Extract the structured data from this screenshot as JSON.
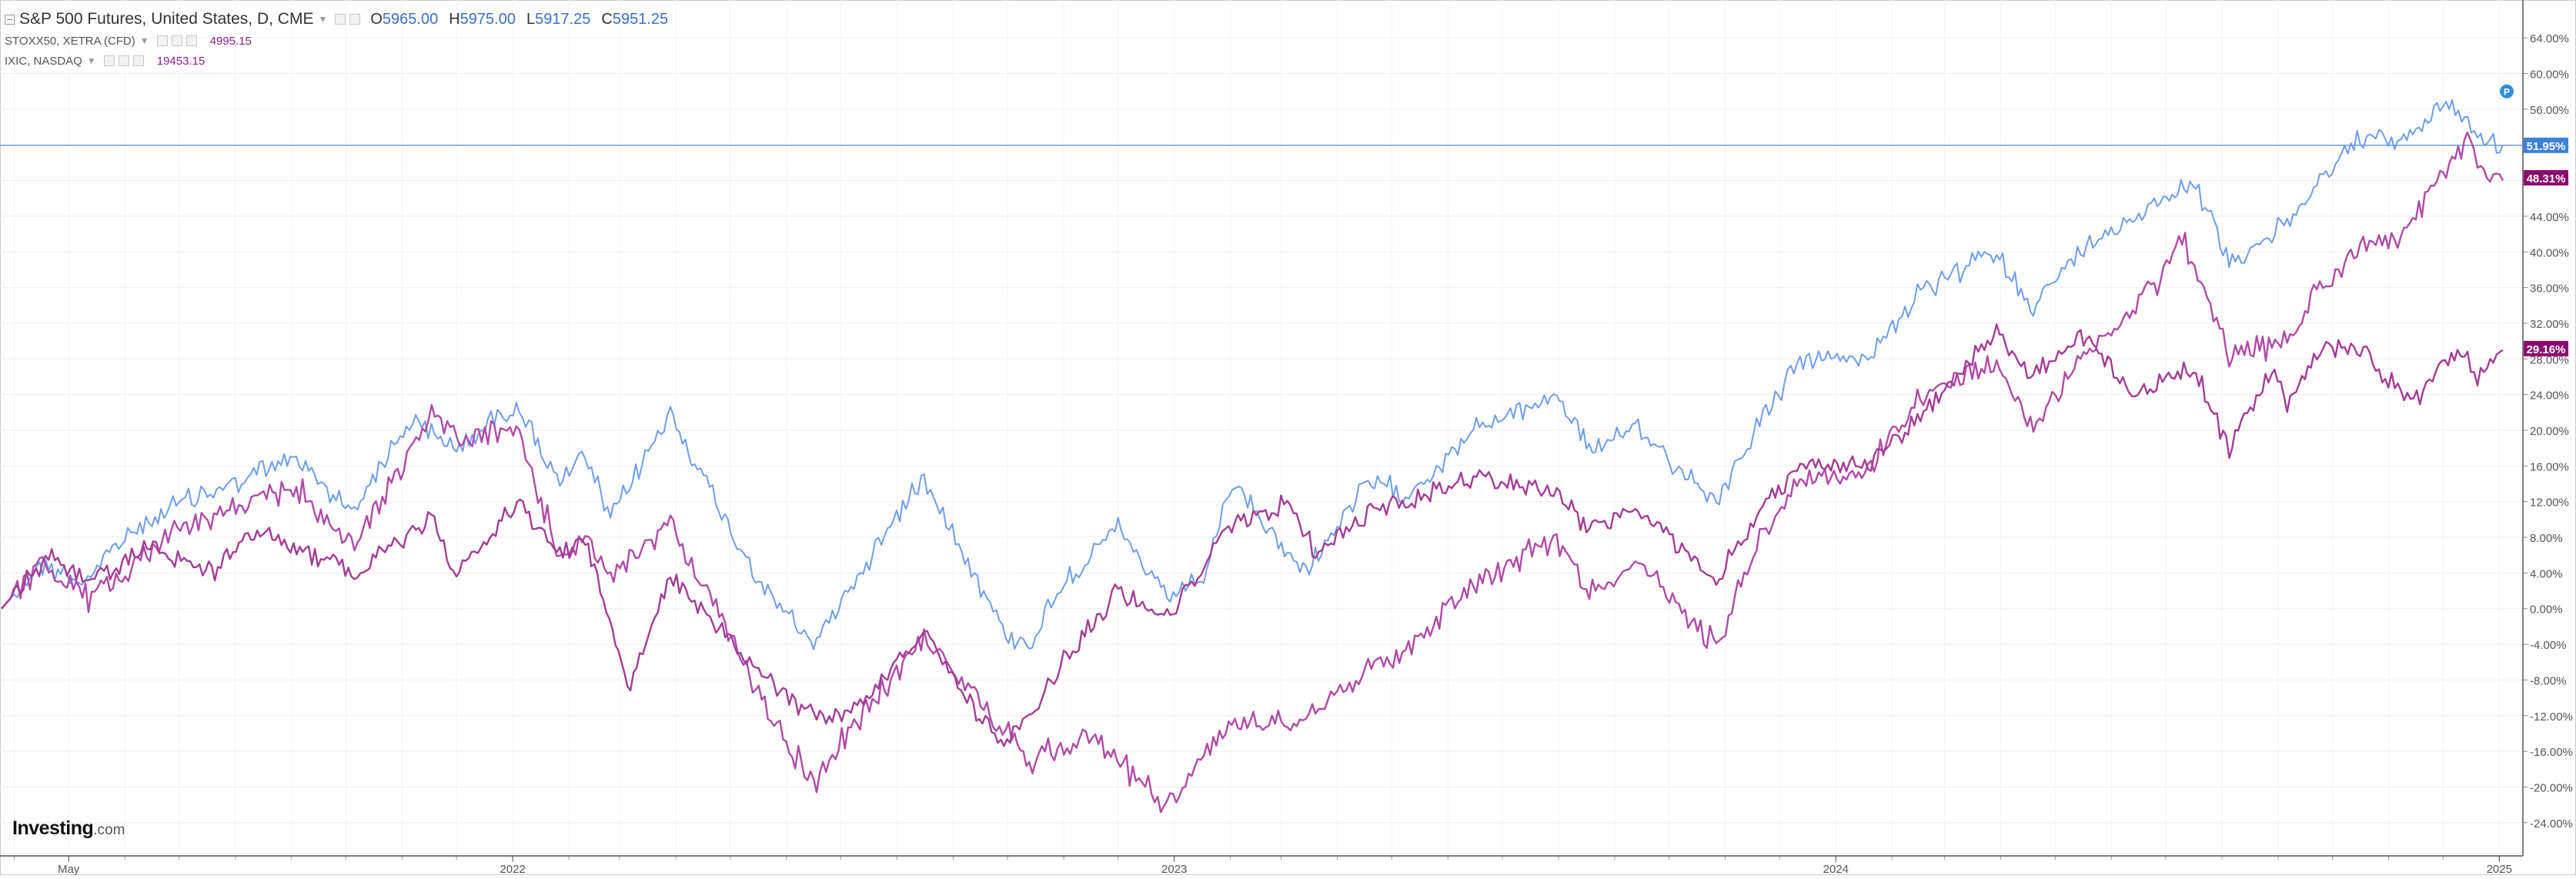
{
  "legend": {
    "main": {
      "symbol": "S&P 500 Futures, United States, D, CME",
      "open_key": "O",
      "open": "5965.00",
      "high_key": "H",
      "high": "5975.00",
      "low_key": "L",
      "low": "5917.25",
      "close_key": "C",
      "close": "5951.25"
    },
    "compare1": {
      "symbol": "STOXX50, XETRA (CFD)",
      "value": "4995.15"
    },
    "compare2": {
      "symbol": "IXIC, NASDAQ",
      "value": "19453.15"
    }
  },
  "logo": {
    "brand": "Investing",
    "tld": ".com"
  },
  "colors": {
    "sp500": "#6d9eeb",
    "nasdaq": "#b04aa8",
    "stoxx": "#a43c96",
    "stoxx_tag": "#8b0a6f",
    "nasdaq_tag": "#8b0a6f",
    "sp_tag": "#3d7fd9",
    "grid": "#eeeeee",
    "axis_text": "#555555"
  },
  "chart_data": {
    "type": "line",
    "yaxis": {
      "min": -26,
      "max": 66,
      "unit": "%",
      "ticks": [
        "64.00%",
        "60.00%",
        "56.00%",
        "52.00%",
        "48.00%",
        "44.00%",
        "40.00%",
        "36.00%",
        "32.00%",
        "28.00%",
        "24.00%",
        "20.00%",
        "16.00%",
        "12.00%",
        "8.00%",
        "4.00%",
        "0.00%",
        "-4.00%",
        "-8.00%",
        "-12.00%",
        "-16.00%",
        "-20.00%",
        "-24.00%"
      ]
    },
    "xaxis": {
      "start": "2021-03-25",
      "end": "2025-01-03",
      "ticks": [
        {
          "label": "May",
          "date": "2021-05-01"
        },
        {
          "label": "2022",
          "date": "2022-01-01"
        },
        {
          "label": "2023",
          "date": "2023-01-01"
        },
        {
          "label": "2024",
          "date": "2024-01-01"
        },
        {
          "label": "2025",
          "date": "2025-01-01"
        }
      ]
    },
    "grid": true,
    "last_values": [
      {
        "series": "S&P 500 Futures",
        "label": "51.95%",
        "value": 51.95
      },
      {
        "series": "IXIC",
        "label": "48.31%",
        "value": 48.31
      },
      {
        "series": "STOXX50",
        "label": "29.16%",
        "value": 29.16
      }
    ],
    "series": [
      {
        "name": "S&P 500 Futures",
        "points": [
          [
            "2021-03-25",
            0
          ],
          [
            "2021-04-15",
            5
          ],
          [
            "2021-05-10",
            3
          ],
          [
            "2021-06-01",
            8
          ],
          [
            "2021-07-01",
            12
          ],
          [
            "2021-08-01",
            14
          ],
          [
            "2021-09-02",
            17
          ],
          [
            "2021-10-04",
            11
          ],
          [
            "2021-11-05",
            21
          ],
          [
            "2021-12-01",
            18
          ],
          [
            "2022-01-03",
            23
          ],
          [
            "2022-01-27",
            14
          ],
          [
            "2022-02-10",
            17
          ],
          [
            "2022-02-24",
            10
          ],
          [
            "2022-03-29",
            22
          ],
          [
            "2022-04-28",
            10
          ],
          [
            "2022-05-20",
            2
          ],
          [
            "2022-06-16",
            -4
          ],
          [
            "2022-07-05",
            2
          ],
          [
            "2022-08-16",
            15
          ],
          [
            "2022-09-30",
            -3
          ],
          [
            "2022-10-13",
            -4
          ],
          [
            "2022-11-01",
            3
          ],
          [
            "2022-12-01",
            9
          ],
          [
            "2022-12-28",
            1
          ],
          [
            "2023-01-19",
            4
          ],
          [
            "2023-02-02",
            14
          ],
          [
            "2023-03-13",
            4
          ],
          [
            "2023-04-18",
            14
          ],
          [
            "2023-05-12",
            13
          ],
          [
            "2023-06-15",
            20
          ],
          [
            "2023-07-31",
            24
          ],
          [
            "2023-08-18",
            18
          ],
          [
            "2023-09-14",
            20
          ],
          [
            "2023-10-27",
            12
          ],
          [
            "2023-11-20",
            21
          ],
          [
            "2023-12-14",
            28
          ],
          [
            "2024-01-17",
            28
          ],
          [
            "2024-02-15",
            35
          ],
          [
            "2024-03-28",
            40
          ],
          [
            "2024-04-19",
            34
          ],
          [
            "2024-05-15",
            40
          ],
          [
            "2024-06-28",
            46
          ],
          [
            "2024-07-16",
            48
          ],
          [
            "2024-08-05",
            39
          ],
          [
            "2024-09-06",
            43
          ],
          [
            "2024-09-24",
            48
          ],
          [
            "2024-10-18",
            53
          ],
          [
            "2024-11-06",
            52
          ],
          [
            "2024-12-06",
            57
          ],
          [
            "2024-12-20",
            53
          ],
          [
            "2025-01-03",
            52
          ]
        ]
      },
      {
        "name": "IXIC",
        "points": [
          [
            "2021-03-25",
            0
          ],
          [
            "2021-04-15",
            5
          ],
          [
            "2021-05-12",
            1
          ],
          [
            "2021-06-30",
            9
          ],
          [
            "2021-07-15",
            10
          ],
          [
            "2021-08-15",
            12
          ],
          [
            "2021-09-02",
            14
          ],
          [
            "2021-10-04",
            7
          ],
          [
            "2021-11-19",
            22
          ],
          [
            "2021-12-01",
            19
          ],
          [
            "2022-01-03",
            20
          ],
          [
            "2022-01-27",
            6
          ],
          [
            "2022-02-10",
            8
          ],
          [
            "2022-02-24",
            3
          ],
          [
            "2022-03-29",
            10
          ],
          [
            "2022-05-10",
            -7
          ],
          [
            "2022-06-16",
            -20
          ],
          [
            "2022-07-05",
            -14
          ],
          [
            "2022-08-16",
            -3
          ],
          [
            "2022-09-30",
            -14
          ],
          [
            "2022-10-13",
            -17
          ],
          [
            "2022-11-15",
            -14
          ],
          [
            "2022-12-28",
            -22
          ],
          [
            "2023-01-31",
            -13
          ],
          [
            "2023-03-13",
            -12
          ],
          [
            "2023-04-18",
            -7
          ],
          [
            "2023-05-12",
            -4
          ],
          [
            "2023-06-15",
            3
          ],
          [
            "2023-07-31",
            8
          ],
          [
            "2023-08-18",
            2
          ],
          [
            "2023-09-14",
            5
          ],
          [
            "2023-10-27",
            -4
          ],
          [
            "2023-11-20",
            8
          ],
          [
            "2023-12-14",
            15
          ],
          [
            "2024-01-17",
            15
          ],
          [
            "2024-02-15",
            23
          ],
          [
            "2024-03-28",
            28
          ],
          [
            "2024-04-19",
            20
          ],
          [
            "2024-05-15",
            28
          ],
          [
            "2024-06-28",
            37
          ],
          [
            "2024-07-10",
            42
          ],
          [
            "2024-08-05",
            28
          ],
          [
            "2024-09-06",
            30
          ],
          [
            "2024-09-24",
            36
          ],
          [
            "2024-10-18",
            41
          ],
          [
            "2024-11-06",
            41
          ],
          [
            "2024-12-16",
            53
          ],
          [
            "2024-12-20",
            50
          ],
          [
            "2025-01-03",
            48
          ]
        ]
      },
      {
        "name": "STOXX50",
        "points": [
          [
            "2021-03-25",
            0
          ],
          [
            "2021-04-20",
            6
          ],
          [
            "2021-05-12",
            3
          ],
          [
            "2021-06-15",
            7
          ],
          [
            "2021-07-19",
            4
          ],
          [
            "2021-08-13",
            9
          ],
          [
            "2021-10-04",
            4
          ],
          [
            "2021-11-17",
            10
          ],
          [
            "2021-12-01",
            4
          ],
          [
            "2022-01-05",
            12
          ],
          [
            "2022-01-27",
            6
          ],
          [
            "2022-02-10",
            8
          ],
          [
            "2022-03-07",
            -9
          ],
          [
            "2022-03-29",
            4
          ],
          [
            "2022-05-10",
            -6
          ],
          [
            "2022-06-16",
            -12
          ],
          [
            "2022-07-05",
            -12
          ],
          [
            "2022-08-16",
            -3
          ],
          [
            "2022-09-29",
            -16
          ],
          [
            "2022-11-01",
            -6
          ],
          [
            "2022-12-01",
            2
          ],
          [
            "2022-12-28",
            -1
          ],
          [
            "2023-01-31",
            9
          ],
          [
            "2023-03-06",
            12
          ],
          [
            "2023-03-20",
            6
          ],
          [
            "2023-04-21",
            11
          ],
          [
            "2023-05-12",
            12
          ],
          [
            "2023-06-15",
            15
          ],
          [
            "2023-07-31",
            13
          ],
          [
            "2023-08-18",
            9
          ],
          [
            "2023-09-14",
            11
          ],
          [
            "2023-10-27",
            3
          ],
          [
            "2023-11-20",
            11
          ],
          [
            "2023-12-14",
            16
          ],
          [
            "2024-01-17",
            16
          ],
          [
            "2024-02-15",
            21
          ],
          [
            "2024-03-28",
            31
          ],
          [
            "2024-04-19",
            26
          ],
          [
            "2024-05-15",
            31
          ],
          [
            "2024-06-14",
            24
          ],
          [
            "2024-07-16",
            27
          ],
          [
            "2024-08-05",
            18
          ],
          [
            "2024-08-30",
            27
          ],
          [
            "2024-09-06",
            23
          ],
          [
            "2024-09-24",
            29
          ],
          [
            "2024-10-18",
            29
          ],
          [
            "2024-11-13",
            23
          ],
          [
            "2024-12-09",
            29
          ],
          [
            "2024-12-20",
            26
          ],
          [
            "2025-01-03",
            29
          ]
        ]
      }
    ]
  }
}
